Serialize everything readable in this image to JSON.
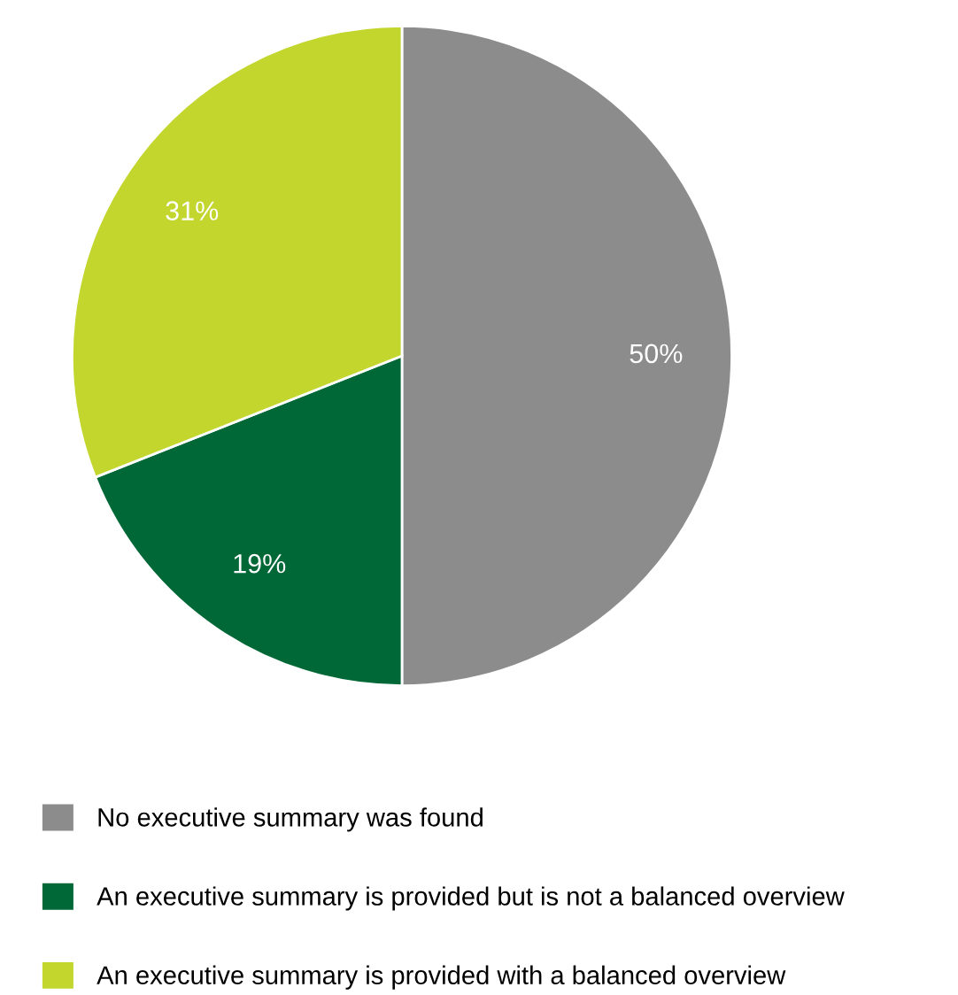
{
  "chart_data": {
    "type": "pie",
    "categories": [
      "No executive summary was found",
      "An executive summary is provided but is not a balanced overview",
      "An executive summary is provided with a balanced overview"
    ],
    "values": [
      50,
      19,
      31
    ],
    "colors": [
      "#8c8c8c",
      "#006837",
      "#c2d62e"
    ],
    "value_labels": [
      "50%",
      "19%",
      "31%"
    ],
    "legend": "bottom"
  }
}
